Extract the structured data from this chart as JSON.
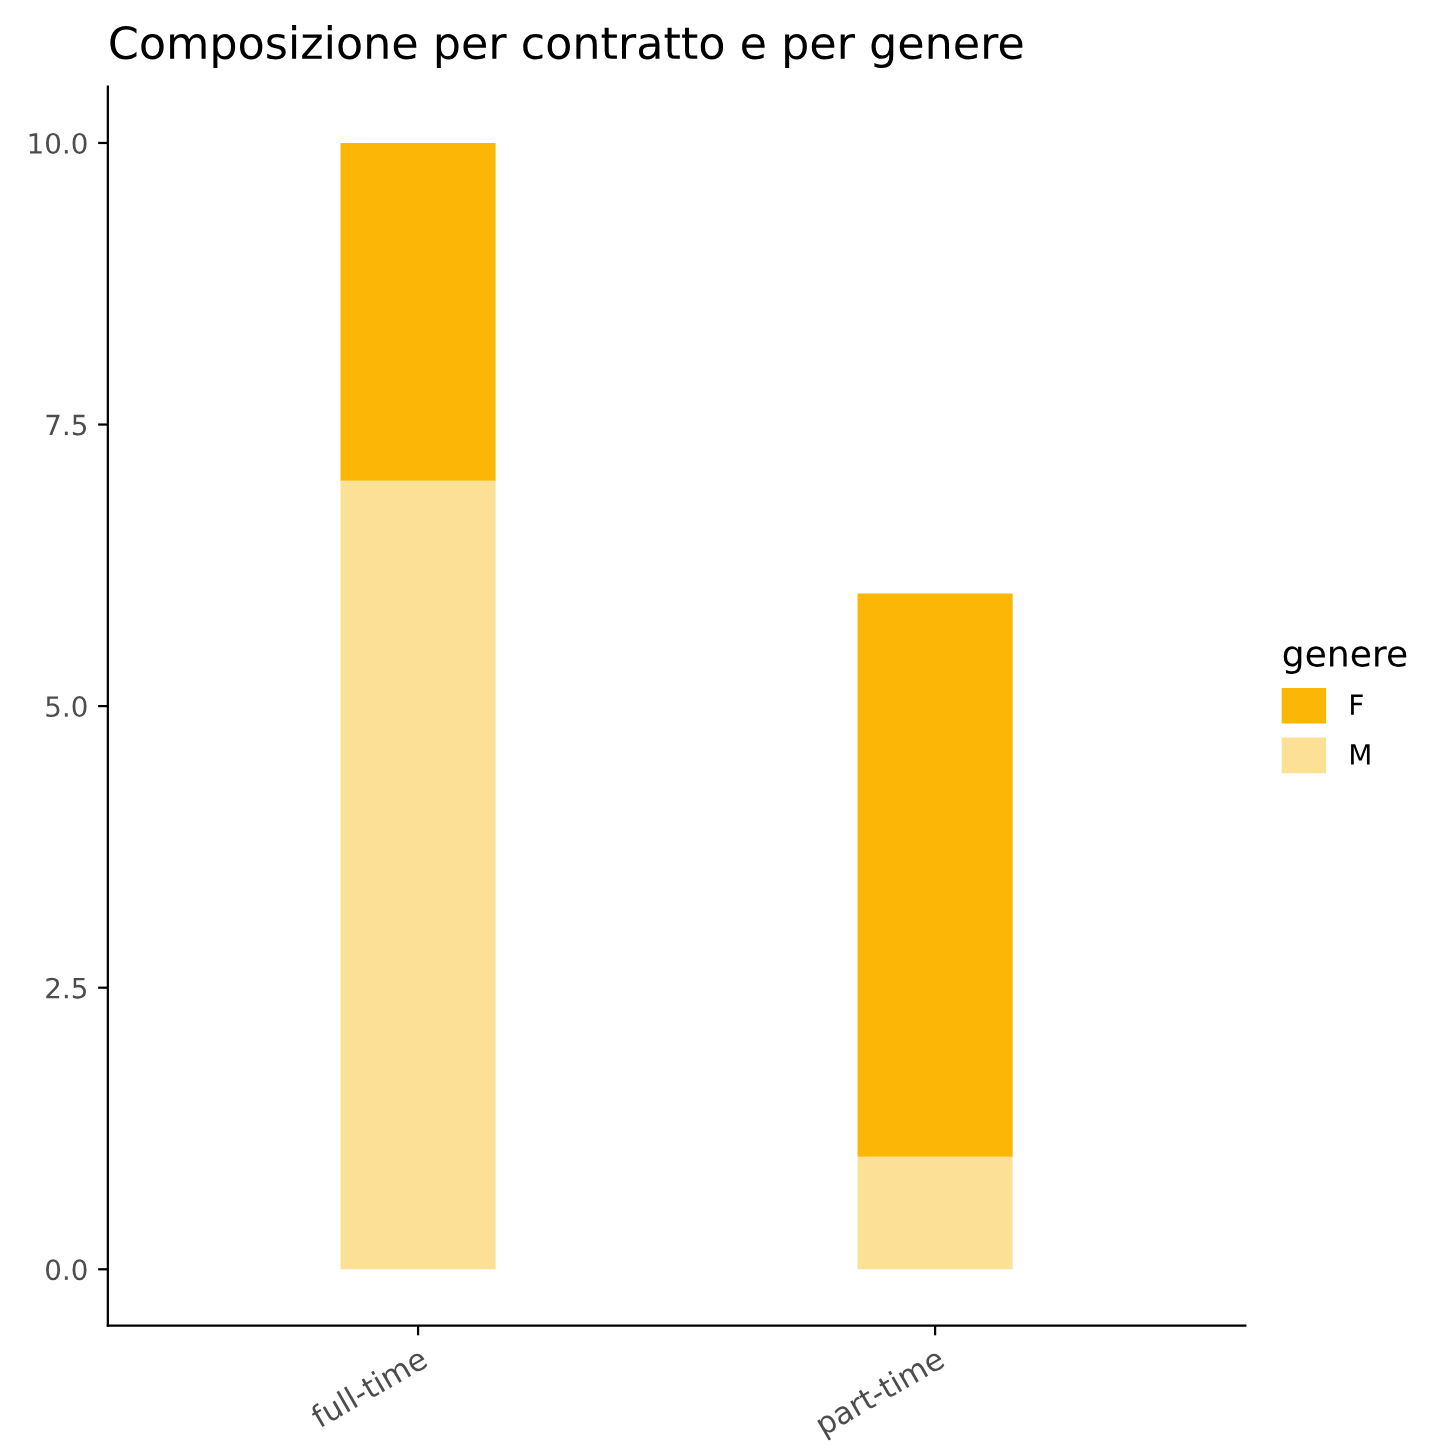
{
  "chart_data": {
    "type": "bar",
    "title": "Composizione per contratto e per genere",
    "categories": [
      "full-time",
      "part-time"
    ],
    "stacked": true,
    "legend": "right",
    "legend_title": "genere",
    "grid": false,
    "ylim": [
      -0.5,
      10.5
    ],
    "yticks": [
      {
        "value": 0,
        "label": "0.0"
      },
      {
        "value": 2.5,
        "label": "2.5"
      },
      {
        "value": 5,
        "label": "5.0"
      },
      {
        "value": 7.5,
        "label": "7.5"
      },
      {
        "value": 10,
        "label": "10.0"
      }
    ],
    "series": [
      {
        "name": "M",
        "color": "#fbe095",
        "values": [
          7,
          1
        ]
      },
      {
        "name": "F",
        "color": "#fbb606",
        "values": [
          3,
          5
        ]
      }
    ]
  }
}
